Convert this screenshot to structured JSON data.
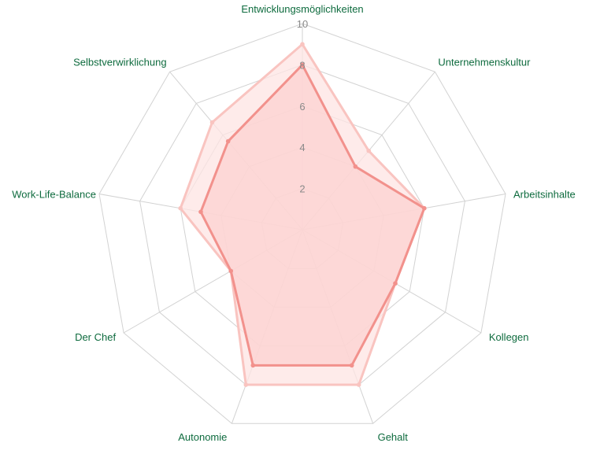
{
  "chart_data": {
    "type": "radar",
    "axes": [
      "Entwicklungsmöglichkeiten",
      "Unternehmenskultur",
      "Arbeitsinhalte",
      "Kollegen",
      "Gehalt",
      "Autonomie",
      "Der Chef",
      "Work-Life-Balance",
      "Selbstverwirklichung"
    ],
    "ticks": [
      "2",
      "4",
      "6",
      "8",
      "10"
    ],
    "tick_values": [
      2,
      4,
      6,
      8,
      10
    ],
    "rlim": [
      0,
      10
    ],
    "grid": true,
    "legend": "none",
    "series": [
      {
        "values": [
          9,
          5,
          6,
          5.2,
          8,
          8,
          4,
          6,
          6.8
        ],
        "line_color": "#f9c4c0",
        "fill_color": "#fde4e3"
      },
      {
        "values": [
          8,
          4,
          6,
          5.2,
          7,
          7,
          4,
          5,
          5.6
        ],
        "line_color": "#f2918c",
        "fill_color": "#fcd0ce"
      }
    ],
    "colors": {
      "label": "#0e6b3e",
      "tick": "#8a8a8a",
      "grid": "#d2d2d2"
    }
  }
}
